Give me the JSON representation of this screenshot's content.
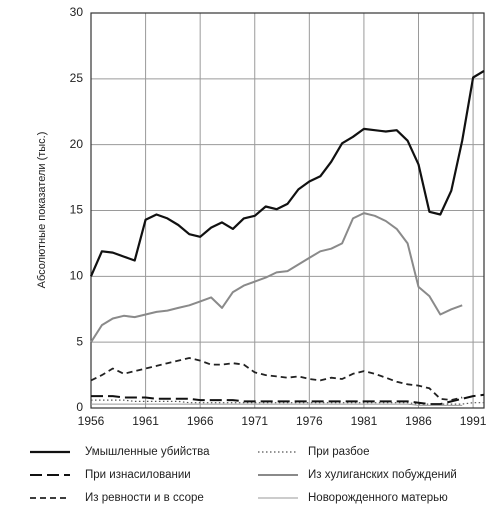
{
  "chart_data": {
    "type": "line",
    "y_label": "Абсолютные показатели (тыс.)",
    "x": [
      1956,
      1957,
      1958,
      1959,
      1960,
      1961,
      1962,
      1963,
      1964,
      1965,
      1966,
      1967,
      1968,
      1969,
      1970,
      1971,
      1972,
      1973,
      1974,
      1975,
      1976,
      1977,
      1978,
      1979,
      1980,
      1981,
      1982,
      1983,
      1984,
      1985,
      1986,
      1987,
      1988,
      1989,
      1990,
      1991,
      1992
    ],
    "xlim": [
      1956,
      1992
    ],
    "xticks": [
      1956,
      1961,
      1966,
      1971,
      1976,
      1981,
      1986,
      1991
    ],
    "ylim": [
      0,
      30
    ],
    "yticks": [
      0,
      5,
      10,
      15,
      20,
      25,
      30
    ],
    "grid": true,
    "series": [
      {
        "name": "Умышленные убийства",
        "color": "#111111",
        "line_style": "solid",
        "line_width": 2.2,
        "values": [
          10.0,
          11.9,
          11.8,
          11.5,
          11.2,
          14.3,
          14.7,
          14.4,
          13.9,
          13.2,
          13.0,
          13.7,
          14.1,
          13.6,
          14.4,
          14.6,
          15.3,
          15.1,
          15.5,
          16.6,
          17.2,
          17.6,
          18.7,
          20.1,
          20.6,
          21.2,
          21.1,
          21.0,
          21.1,
          20.3,
          18.5,
          14.9,
          14.7,
          16.5,
          20.3,
          25.1,
          25.6
        ]
      },
      {
        "name": "При разбое",
        "color": "#555555",
        "line_style": "dotted",
        "line_width": 1.2,
        "values": [
          0.6,
          0.6,
          0.6,
          0.6,
          0.5,
          0.5,
          0.5,
          0.5,
          0.5,
          0.4,
          0.4,
          0.4,
          0.4,
          0.4,
          0.4,
          0.4,
          0.4,
          0.4,
          0.4,
          0.4,
          0.4,
          0.4,
          0.4,
          0.4,
          0.4,
          0.4,
          0.4,
          0.4,
          0.4,
          0.4,
          0.3,
          0.3,
          0.3,
          0.3,
          0.3,
          0.4,
          0.4
        ]
      },
      {
        "name": "При изнасиловании",
        "color": "#111111",
        "line_style": "longdash",
        "line_width": 2,
        "values": [
          0.9,
          0.9,
          0.9,
          0.8,
          0.8,
          0.8,
          0.7,
          0.7,
          0.7,
          0.7,
          0.6,
          0.6,
          0.6,
          0.6,
          0.5,
          0.5,
          0.5,
          0.5,
          0.5,
          0.5,
          0.5,
          0.5,
          0.5,
          0.5,
          0.5,
          0.5,
          0.5,
          0.5,
          0.5,
          0.5,
          0.4,
          0.3,
          0.3,
          0.5,
          0.7,
          0.9,
          1.0
        ]
      },
      {
        "name": "Из хулиганских побуждений",
        "color": "#8a8a8a",
        "line_style": "solid",
        "line_width": 2,
        "values": [
          5.0,
          6.3,
          6.8,
          7.0,
          6.9,
          7.1,
          7.3,
          7.4,
          7.6,
          7.8,
          8.1,
          8.4,
          7.6,
          8.8,
          9.3,
          9.6,
          9.9,
          10.3,
          10.4,
          10.9,
          11.4,
          11.9,
          12.1,
          12.5,
          14.4,
          14.8,
          14.6,
          14.2,
          13.6,
          12.5,
          9.2,
          8.5,
          7.1,
          7.5,
          7.8,
          null,
          null
        ]
      },
      {
        "name": "Из ревности и в ссоре",
        "color": "#222222",
        "line_style": "dashed",
        "line_width": 1.8,
        "values": [
          2.1,
          2.5,
          3.0,
          2.6,
          2.8,
          3.0,
          3.2,
          3.4,
          3.6,
          3.8,
          3.6,
          3.3,
          3.3,
          3.4,
          3.3,
          2.7,
          2.5,
          2.4,
          2.3,
          2.4,
          2.2,
          2.1,
          2.3,
          2.2,
          2.6,
          2.8,
          2.6,
          2.3,
          2.0,
          1.8,
          1.7,
          1.5,
          0.7,
          0.6,
          0.8,
          null,
          null
        ]
      },
      {
        "name": "Новорожденного матерью",
        "color": "#999999",
        "line_style": "solid",
        "line_width": 1,
        "values": [
          0.3,
          0.3,
          0.3,
          0.3,
          0.3,
          0.3,
          0.3,
          0.3,
          0.3,
          0.3,
          0.3,
          0.3,
          0.3,
          0.3,
          0.3,
          0.3,
          0.3,
          0.3,
          0.3,
          0.3,
          0.3,
          0.3,
          0.3,
          0.3,
          0.3,
          0.3,
          0.3,
          0.3,
          0.3,
          0.3,
          0.2,
          0.2,
          0.2,
          0.2,
          0.2,
          null,
          null
        ]
      }
    ]
  }
}
